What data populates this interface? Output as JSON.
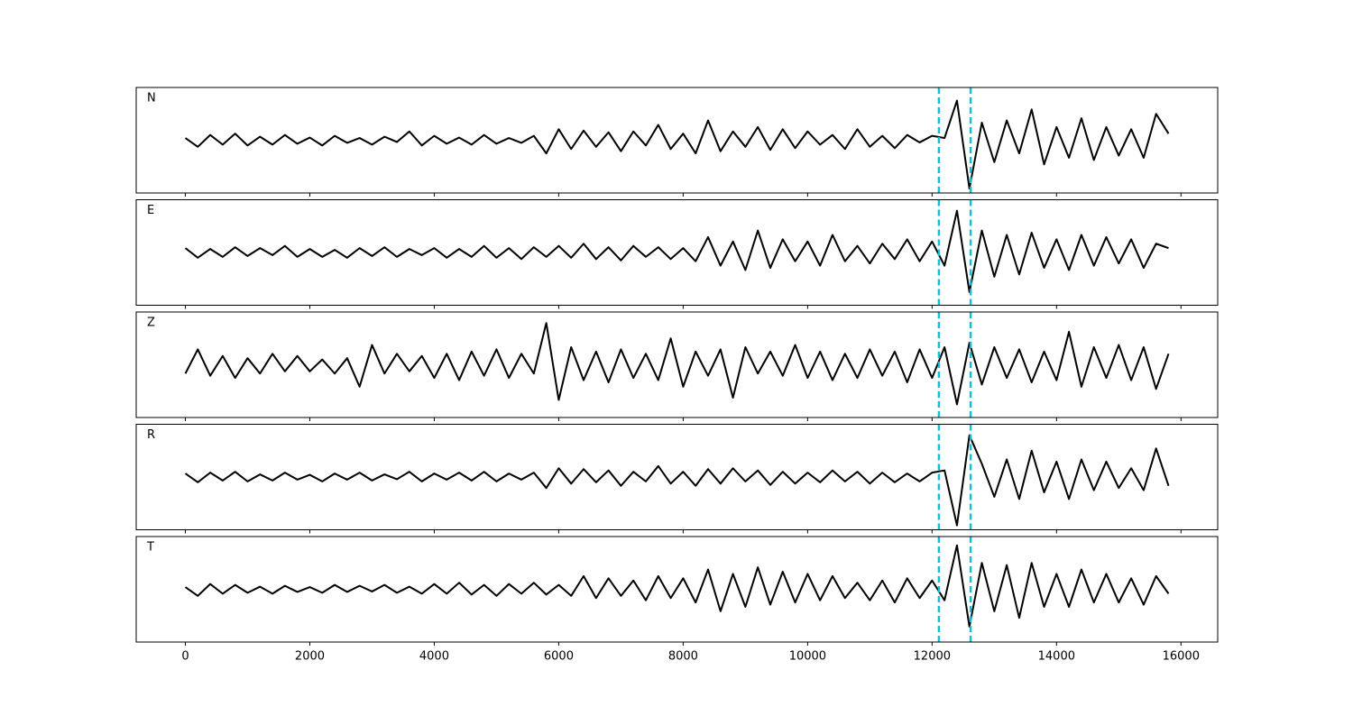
{
  "chart_data": {
    "type": "line",
    "x": [
      0,
      200,
      400,
      600,
      800,
      1000,
      1200,
      1400,
      1600,
      1800,
      2000,
      2200,
      2400,
      2600,
      2800,
      3000,
      3200,
      3400,
      3600,
      3800,
      4000,
      4200,
      4400,
      4600,
      4800,
      5000,
      5200,
      5400,
      5600,
      5800,
      6000,
      6200,
      6400,
      6600,
      6800,
      7000,
      7200,
      7400,
      7600,
      7800,
      8000,
      8200,
      8400,
      8600,
      8800,
      9000,
      9200,
      9400,
      9600,
      9800,
      10000,
      10200,
      10400,
      10600,
      10800,
      11000,
      11200,
      11400,
      11600,
      11800,
      12000,
      12200,
      12400,
      12600,
      12800,
      13000,
      13200,
      13400,
      13600,
      13800,
      14000,
      14200,
      14400,
      14600,
      14800,
      15000,
      15200,
      15400,
      15600,
      15800
    ],
    "series": [
      {
        "name": "N",
        "color": "#000000",
        "values": [
          0.05,
          -0.15,
          0.12,
          -0.1,
          0.15,
          -0.12,
          0.08,
          -0.1,
          0.12,
          -0.08,
          0.06,
          -0.12,
          0.1,
          -0.06,
          0.05,
          -0.1,
          0.08,
          -0.04,
          0.2,
          -0.12,
          0.1,
          -0.08,
          0.06,
          -0.1,
          0.12,
          -0.08,
          0.05,
          -0.06,
          0.1,
          -0.3,
          0.25,
          -0.2,
          0.22,
          -0.15,
          0.18,
          -0.25,
          0.2,
          -0.12,
          0.35,
          -0.2,
          0.15,
          -0.3,
          0.45,
          -0.25,
          0.2,
          -0.15,
          0.3,
          -0.22,
          0.25,
          -0.18,
          0.2,
          -0.1,
          0.12,
          -0.2,
          0.25,
          -0.15,
          0.1,
          -0.18,
          0.12,
          -0.05,
          0.1,
          0.05,
          0.9,
          -1.1,
          0.4,
          -0.5,
          0.45,
          -0.3,
          0.7,
          -0.55,
          0.3,
          -0.4,
          0.5,
          -0.45,
          0.3,
          -0.35,
          0.25,
          -0.4,
          0.6,
          0.15
        ]
      },
      {
        "name": "E",
        "color": "#000000",
        "values": [
          0.1,
          -0.12,
          0.08,
          -0.1,
          0.12,
          -0.08,
          0.1,
          -0.06,
          0.15,
          -0.1,
          0.08,
          -0.1,
          0.06,
          -0.12,
          0.1,
          -0.08,
          0.12,
          -0.1,
          0.08,
          -0.06,
          0.1,
          -0.12,
          0.08,
          -0.1,
          0.15,
          -0.12,
          0.1,
          -0.15,
          0.12,
          -0.1,
          0.15,
          -0.12,
          0.2,
          -0.15,
          0.12,
          -0.18,
          0.15,
          -0.1,
          0.12,
          -0.15,
          0.1,
          -0.2,
          0.35,
          -0.3,
          0.25,
          -0.4,
          0.5,
          -0.35,
          0.3,
          -0.2,
          0.25,
          -0.3,
          0.4,
          -0.2,
          0.15,
          -0.25,
          0.2,
          -0.15,
          0.3,
          -0.2,
          0.25,
          -0.3,
          0.95,
          -0.9,
          0.5,
          -0.55,
          0.4,
          -0.5,
          0.45,
          -0.35,
          0.3,
          -0.4,
          0.4,
          -0.3,
          0.35,
          -0.25,
          0.3,
          -0.35,
          0.2,
          0.1
        ]
      },
      {
        "name": "Z",
        "color": "#000000",
        "values": [
          -0.2,
          0.35,
          -0.25,
          0.2,
          -0.3,
          0.15,
          -0.2,
          0.25,
          -0.15,
          0.2,
          -0.15,
          0.12,
          -0.2,
          0.15,
          -0.5,
          0.45,
          -0.2,
          0.25,
          -0.15,
          0.2,
          -0.3,
          0.25,
          -0.35,
          0.3,
          -0.25,
          0.35,
          -0.3,
          0.25,
          -0.2,
          0.95,
          -0.8,
          0.4,
          -0.35,
          0.3,
          -0.4,
          0.35,
          -0.3,
          0.25,
          -0.35,
          0.6,
          -0.5,
          0.3,
          -0.25,
          0.35,
          -0.75,
          0.4,
          -0.2,
          0.3,
          -0.25,
          0.45,
          -0.3,
          0.3,
          -0.35,
          0.25,
          -0.3,
          0.35,
          -0.25,
          0.3,
          -0.4,
          0.35,
          -0.3,
          0.4,
          -0.9,
          0.5,
          -0.45,
          0.4,
          -0.3,
          0.35,
          -0.4,
          0.3,
          -0.35,
          0.75,
          -0.5,
          0.4,
          -0.3,
          0.45,
          -0.35,
          0.4,
          -0.55,
          0.25
        ]
      },
      {
        "name": "R",
        "color": "#000000",
        "values": [
          0.08,
          -0.12,
          0.1,
          -0.08,
          0.12,
          -0.1,
          0.06,
          -0.08,
          0.1,
          -0.06,
          0.05,
          -0.1,
          0.08,
          -0.06,
          0.1,
          -0.08,
          0.06,
          -0.05,
          0.12,
          -0.1,
          0.08,
          -0.06,
          0.1,
          -0.08,
          0.12,
          -0.1,
          0.08,
          -0.06,
          0.1,
          -0.25,
          0.2,
          -0.15,
          0.18,
          -0.12,
          0.15,
          -0.2,
          0.12,
          -0.1,
          0.25,
          -0.15,
          0.12,
          -0.2,
          0.18,
          -0.15,
          0.2,
          -0.1,
          0.15,
          -0.18,
          0.12,
          -0.15,
          0.1,
          -0.12,
          0.15,
          -0.1,
          0.12,
          -0.15,
          0.1,
          -0.12,
          0.08,
          -0.1,
          0.1,
          0.15,
          -1.1,
          0.95,
          0.3,
          -0.45,
          0.4,
          -0.5,
          0.6,
          -0.35,
          0.35,
          -0.5,
          0.4,
          -0.3,
          0.35,
          -0.25,
          0.2,
          -0.3,
          0.65,
          -0.2
        ]
      },
      {
        "name": "T",
        "color": "#000000",
        "values": [
          0.05,
          -0.15,
          0.12,
          -0.1,
          0.1,
          -0.08,
          0.06,
          -0.1,
          0.08,
          -0.06,
          0.05,
          -0.08,
          0.1,
          -0.06,
          0.08,
          -0.05,
          0.1,
          -0.08,
          0.06,
          -0.1,
          0.12,
          -0.1,
          0.15,
          -0.12,
          0.1,
          -0.15,
          0.12,
          -0.1,
          0.15,
          -0.12,
          0.1,
          -0.15,
          0.3,
          -0.2,
          0.25,
          -0.15,
          0.2,
          -0.25,
          0.3,
          -0.2,
          0.25,
          -0.3,
          0.45,
          -0.5,
          0.35,
          -0.4,
          0.5,
          -0.35,
          0.4,
          -0.3,
          0.35,
          -0.25,
          0.3,
          -0.2,
          0.15,
          -0.25,
          0.2,
          -0.3,
          0.25,
          -0.2,
          0.2,
          -0.25,
          1.0,
          -0.85,
          0.6,
          -0.5,
          0.55,
          -0.65,
          0.6,
          -0.4,
          0.35,
          -0.4,
          0.45,
          -0.3,
          0.35,
          -0.3,
          0.25,
          -0.35,
          0.3,
          -0.1
        ]
      }
    ],
    "xlim": [
      -790,
      16590
    ],
    "xticks": [
      0,
      2000,
      4000,
      6000,
      8000,
      10000,
      12000,
      14000,
      16000
    ],
    "ylim": [
      -1.2,
      1.2
    ],
    "vlines": [
      12110,
      12620
    ],
    "vline_color": "#17becf"
  }
}
